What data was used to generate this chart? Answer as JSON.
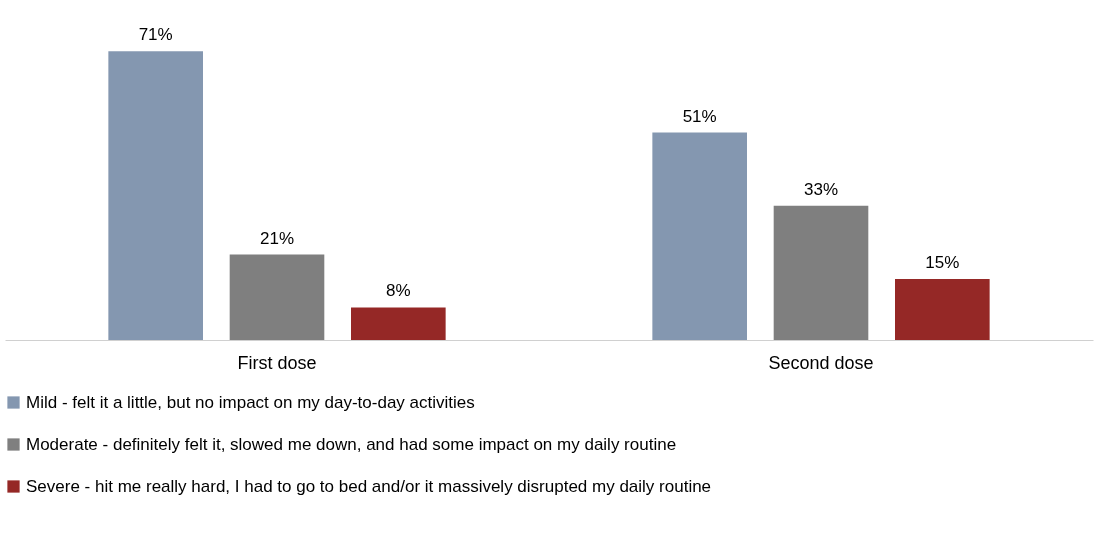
{
  "chart_data": {
    "type": "bar",
    "categories": [
      "First dose",
      "Second dose"
    ],
    "series": [
      {
        "name": "Mild - felt it a little, but no impact on my day-to-day activities",
        "color": "#8497b0",
        "values": [
          71,
          51
        ],
        "value_labels": [
          "71%",
          "51%"
        ]
      },
      {
        "name": "Moderate - definitely felt it, slowed me down, and had some impact on my daily routine",
        "color": "#7f7f7f",
        "values": [
          21,
          33
        ],
        "value_labels": [
          "21%",
          "33%"
        ]
      },
      {
        "name": "Severe - hit me really hard, I had to go to bed and/or it massively disrupted my daily routine",
        "color": "#952826",
        "values": [
          8,
          15
        ],
        "value_labels": [
          "8%",
          "15%"
        ]
      }
    ],
    "legend": "bottom",
    "grid": false
  }
}
